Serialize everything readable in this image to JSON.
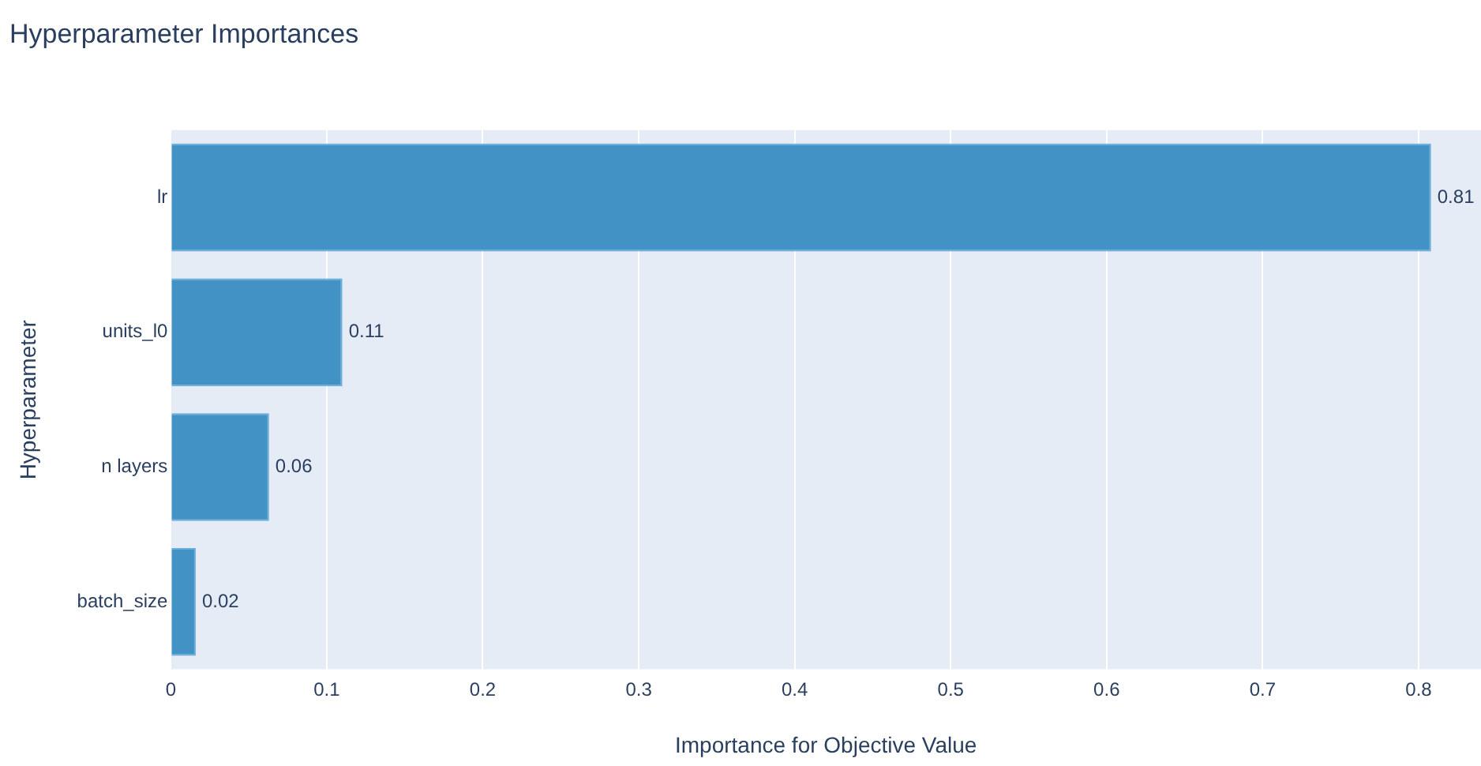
{
  "chart_data": {
    "type": "bar",
    "orientation": "horizontal",
    "title": "Hyperparameter Importances",
    "xlabel": "Importance for Objective Value",
    "ylabel": "Hyperparameter",
    "categories": [
      "lr",
      "units_l0",
      "n layers",
      "batch_size"
    ],
    "values": [
      0.808,
      0.11,
      0.063,
      0.016
    ],
    "value_labels": [
      "0.81",
      "0.11",
      "0.06",
      "0.02"
    ],
    "color": "#4292c6",
    "xlim": [
      0,
      0.84
    ],
    "xticks": [
      0,
      0.1,
      0.2,
      0.3,
      0.4,
      0.5,
      0.6,
      0.7,
      0.8
    ],
    "grid": "x",
    "legend": false
  }
}
